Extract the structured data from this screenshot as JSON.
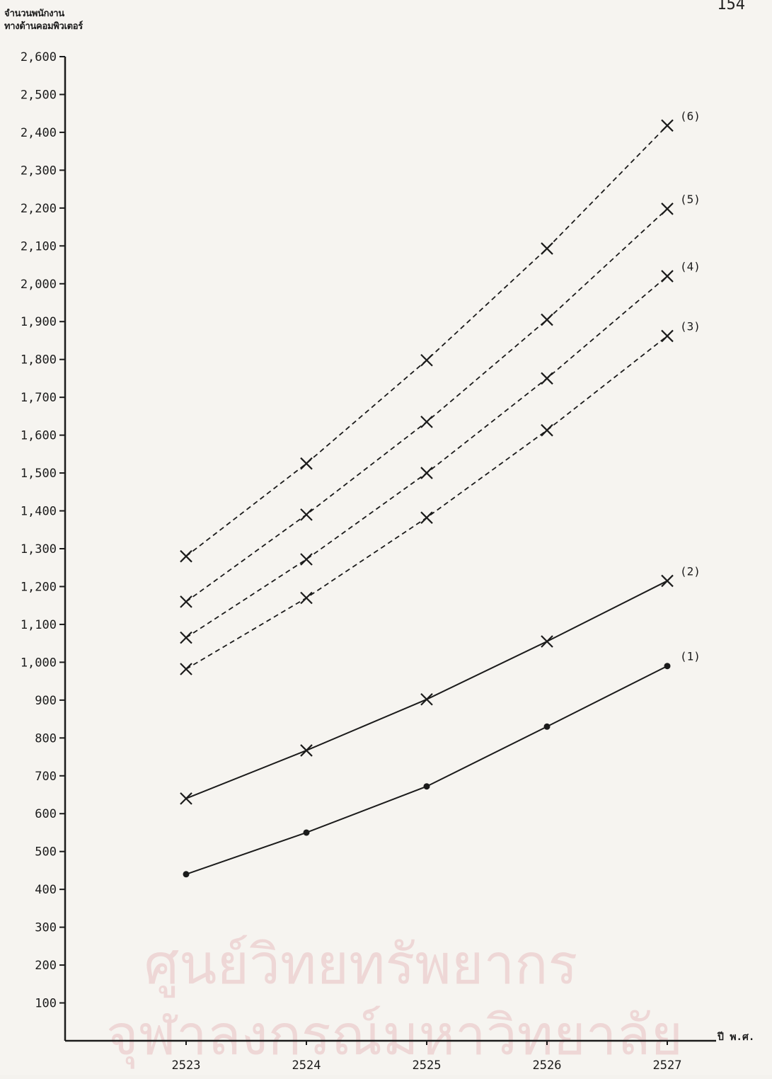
{
  "page_number": "154",
  "watermark": {
    "line1": "ศูนย์วิทยทรัพยากร",
    "line2": "จุฬาลงกรณ์มหาวิทยาลัย"
  },
  "chart_data": {
    "type": "line",
    "ylabel_lines": [
      "จำนวนพนักงาน",
      "ทางด้านคอมพิวเตอร์"
    ],
    "xlabel": "ปี พ.ศ.",
    "categories": [
      "2523",
      "2524",
      "2525",
      "2526",
      "2527"
    ],
    "ylim": [
      0,
      2600
    ],
    "yticks": [
      100,
      200,
      300,
      400,
      500,
      600,
      700,
      800,
      900,
      1000,
      1100,
      1200,
      1300,
      1400,
      1500,
      1600,
      1700,
      1800,
      1900,
      2000,
      2100,
      2200,
      2300,
      2400,
      2500,
      2600
    ],
    "ytick_labels": [
      "100",
      "200",
      "300",
      "400",
      "500",
      "600",
      "700",
      "800",
      "900",
      "1,000",
      "1,100",
      "1,200",
      "1,300",
      "1,400",
      "1,500",
      "1,600",
      "1,700",
      "1,800",
      "1,900",
      "2,000",
      "2,100",
      "2,200",
      "2,300",
      "2,400",
      "2,500",
      "2,600"
    ],
    "grid": false,
    "series": [
      {
        "name": "(1)",
        "values": [
          440,
          550,
          672,
          830,
          990
        ],
        "line_style": "solid",
        "marker": "dot"
      },
      {
        "name": "(2)",
        "values": [
          640,
          767,
          902,
          1055,
          1215
        ],
        "line_style": "solid",
        "marker": "cross"
      },
      {
        "name": "(3)",
        "values": [
          982,
          1170,
          1382,
          1613,
          1862
        ],
        "line_style": "dashed",
        "marker": "cross"
      },
      {
        "name": "(4)",
        "values": [
          1065,
          1272,
          1500,
          1750,
          2020
        ],
        "line_style": "dashed",
        "marker": "cross"
      },
      {
        "name": "(5)",
        "values": [
          1160,
          1390,
          1635,
          1905,
          2198
        ],
        "line_style": "dashed",
        "marker": "cross"
      },
      {
        "name": "(6)",
        "values": [
          1280,
          1525,
          1798,
          2093,
          2418
        ],
        "line_style": "dashed",
        "marker": "cross"
      }
    ],
    "colors": {
      "ink": "#1b1b1b"
    }
  }
}
